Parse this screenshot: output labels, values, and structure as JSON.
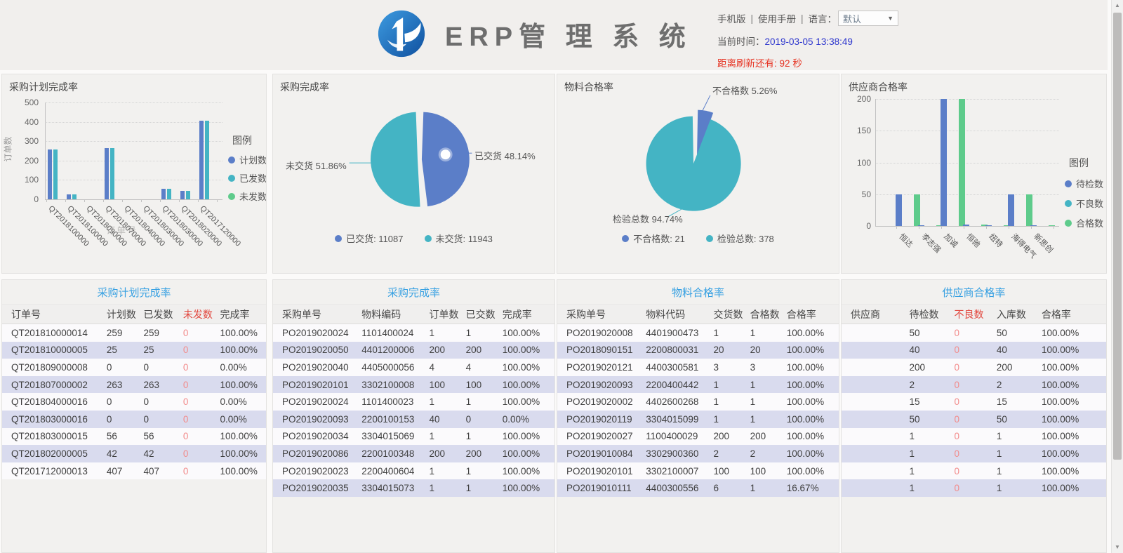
{
  "header": {
    "title": "ERP管 理 系 统",
    "links": {
      "mobile": "手机版",
      "divider1": "|",
      "manual": "使用手册",
      "divider2": "|",
      "language_label": "语言：",
      "language_value": "默认"
    },
    "time_label": "当前时间：",
    "time_value": "2019-03-05 13:38:49",
    "refresh_label": "距离刷新还有:",
    "refresh_value": "92",
    "refresh_unit": "秒"
  },
  "colors": {
    "blue": "#5b7ec8",
    "teal": "#44b4c4",
    "green": "#5ecb8b",
    "title_blue": "#36a0e2",
    "red_header": "#e2473e",
    "red_value": "#f28b8b",
    "time_blue": "#2c35cd",
    "refresh_red": "#e63322"
  },
  "chart_data": [
    {
      "type": "bar",
      "title": "采购计划完成率",
      "legend_title": "图例",
      "xlabel": "订单号",
      "ylabel": "订单数",
      "ylim": [
        0,
        500
      ],
      "ytick_step": 100,
      "grid": "dotted",
      "legend_position": "right",
      "categories": [
        "QT2018100000",
        "QT2018100000",
        "QT2018090000",
        "QT2018070000",
        "QT2018040000",
        "QT2018030000",
        "QT2018030000",
        "QT2018020000",
        "QT2017120000"
      ],
      "series": [
        {
          "name": "计划数",
          "color": "#5b7ec8",
          "values": [
            259,
            25,
            0,
            263,
            0,
            0,
            56,
            42,
            407
          ]
        },
        {
          "name": "已发数",
          "color": "#44b4c4",
          "values": [
            259,
            25,
            0,
            263,
            0,
            0,
            56,
            42,
            407
          ]
        },
        {
          "name": "未发数",
          "color": "#5ecb8b",
          "values": [
            0,
            0,
            0,
            0,
            0,
            0,
            0,
            0,
            0
          ]
        }
      ]
    },
    {
      "type": "pie",
      "title": "采购完成率",
      "legend_position": "bottom",
      "slices": [
        {
          "name": "已交货",
          "value": 11087,
          "pct": "48.14%",
          "callout": "已交货 48.14%",
          "legend": "已交货: 11087",
          "color": "#5b7ec8"
        },
        {
          "name": "未交货",
          "value": 11943,
          "pct": "51.86%",
          "callout": "未交货 51.86%",
          "legend": "未交货: 11943",
          "color": "#44b4c4"
        }
      ]
    },
    {
      "type": "pie",
      "title": "物料合格率",
      "legend_position": "bottom",
      "slices": [
        {
          "name": "不合格数",
          "value": 21,
          "pct": "5.26%",
          "callout": "不合格数 5.26%",
          "legend": "不合格数: 21",
          "color": "#5b7ec8"
        },
        {
          "name": "检验总数",
          "value": 378,
          "pct": "94.74%",
          "callout": "检验总数 94.74%",
          "legend": "检验总数: 378",
          "color": "#44b4c4"
        }
      ]
    },
    {
      "type": "bar",
      "title": "供应商合格率",
      "legend_title": "图例",
      "xlabel": "",
      "ylabel": "",
      "ylim": [
        0,
        200
      ],
      "ytick_step": 50,
      "grid": "dotted",
      "legend_position": "right",
      "categories": [
        "恒达",
        "李志强",
        "加诚",
        "恒驰",
        "纽特",
        "海得电气",
        "新思创"
      ],
      "series": [
        {
          "name": "待检数",
          "color": "#5b7ec8",
          "values": [
            50,
            1,
            200,
            2,
            1,
            50,
            1
          ]
        },
        {
          "name": "不良数",
          "color": "#44b4c4",
          "values": [
            0,
            0,
            0,
            0,
            0,
            0,
            0
          ]
        },
        {
          "name": "合格数",
          "color": "#5ecb8b",
          "values": [
            50,
            1,
            200,
            2,
            1,
            50,
            1
          ]
        }
      ]
    }
  ],
  "tables": [
    {
      "title": "采购计划完成率",
      "headers": [
        "订单号",
        "计划数",
        "已发数",
        "未发数",
        "完成率"
      ],
      "red_columns": [
        3
      ],
      "rows": [
        [
          "QT201810000014",
          "259",
          "259",
          "0",
          "100.00%"
        ],
        [
          "QT201810000005",
          "25",
          "25",
          "0",
          "100.00%"
        ],
        [
          "QT201809000008",
          "0",
          "0",
          "0",
          "0.00%"
        ],
        [
          "QT201807000002",
          "263",
          "263",
          "0",
          "100.00%"
        ],
        [
          "QT201804000016",
          "0",
          "0",
          "0",
          "0.00%"
        ],
        [
          "QT201803000016",
          "0",
          "0",
          "0",
          "0.00%"
        ],
        [
          "QT201803000015",
          "56",
          "56",
          "0",
          "100.00%"
        ],
        [
          "QT201802000005",
          "42",
          "42",
          "0",
          "100.00%"
        ],
        [
          "QT201712000013",
          "407",
          "407",
          "0",
          "100.00%"
        ]
      ]
    },
    {
      "title": "采购完成率",
      "headers": [
        "采购单号",
        "物料编码",
        "订单数",
        "已交数",
        "完成率"
      ],
      "red_columns": [],
      "rows": [
        [
          "PO2019020024",
          "1101400024",
          "1",
          "1",
          "100.00%"
        ],
        [
          "PO2019020050",
          "4401200006",
          "200",
          "200",
          "100.00%"
        ],
        [
          "PO2019020040",
          "4405000056",
          "4",
          "4",
          "100.00%"
        ],
        [
          "PO2019020101",
          "3302100008",
          "100",
          "100",
          "100.00%"
        ],
        [
          "PO2019020024",
          "1101400023",
          "1",
          "1",
          "100.00%"
        ],
        [
          "PO2019020093",
          "2200100153",
          "40",
          "0",
          "0.00%"
        ],
        [
          "PO2019020034",
          "3304015069",
          "1",
          "1",
          "100.00%"
        ],
        [
          "PO2019020086",
          "2200100348",
          "200",
          "200",
          "100.00%"
        ],
        [
          "PO2019020023",
          "2200400604",
          "1",
          "1",
          "100.00%"
        ],
        [
          "PO2019020035",
          "3304015073",
          "1",
          "1",
          "100.00%"
        ]
      ]
    },
    {
      "title": "物料合格率",
      "headers": [
        "采购单号",
        "物料代码",
        "交货数",
        "合格数",
        "合格率"
      ],
      "red_columns": [],
      "rows": [
        [
          "PO2019020008",
          "4401900473",
          "1",
          "1",
          "100.00%"
        ],
        [
          "PO2018090151",
          "2200800031",
          "20",
          "20",
          "100.00%"
        ],
        [
          "PO2019020121",
          "4400300581",
          "3",
          "3",
          "100.00%"
        ],
        [
          "PO2019020093",
          "2200400442",
          "1",
          "1",
          "100.00%"
        ],
        [
          "PO2019020002",
          "4402600268",
          "1",
          "1",
          "100.00%"
        ],
        [
          "PO2019020119",
          "3304015099",
          "1",
          "1",
          "100.00%"
        ],
        [
          "PO2019020027",
          "1100400029",
          "200",
          "200",
          "100.00%"
        ],
        [
          "PO2019010084",
          "3302900360",
          "2",
          "2",
          "100.00%"
        ],
        [
          "PO2019020101",
          "3302100007",
          "100",
          "100",
          "100.00%"
        ],
        [
          "PO2019010111",
          "4400300556",
          "6",
          "1",
          "16.67%"
        ]
      ]
    },
    {
      "title": "供应商合格率",
      "headers": [
        "供应商",
        "待检数",
        "不良数",
        "入库数",
        "合格率"
      ],
      "red_columns": [
        2
      ],
      "rows": [
        [
          "",
          "50",
          "0",
          "50",
          "100.00%"
        ],
        [
          "",
          "40",
          "0",
          "40",
          "100.00%"
        ],
        [
          "",
          "200",
          "0",
          "200",
          "100.00%"
        ],
        [
          "",
          "2",
          "0",
          "2",
          "100.00%"
        ],
        [
          "",
          "15",
          "0",
          "15",
          "100.00%"
        ],
        [
          "",
          "50",
          "0",
          "50",
          "100.00%"
        ],
        [
          "",
          "1",
          "0",
          "1",
          "100.00%"
        ],
        [
          "",
          "1",
          "0",
          "1",
          "100.00%"
        ],
        [
          "",
          "1",
          "0",
          "1",
          "100.00%"
        ],
        [
          "",
          "1",
          "0",
          "1",
          "100.00%"
        ]
      ]
    }
  ]
}
